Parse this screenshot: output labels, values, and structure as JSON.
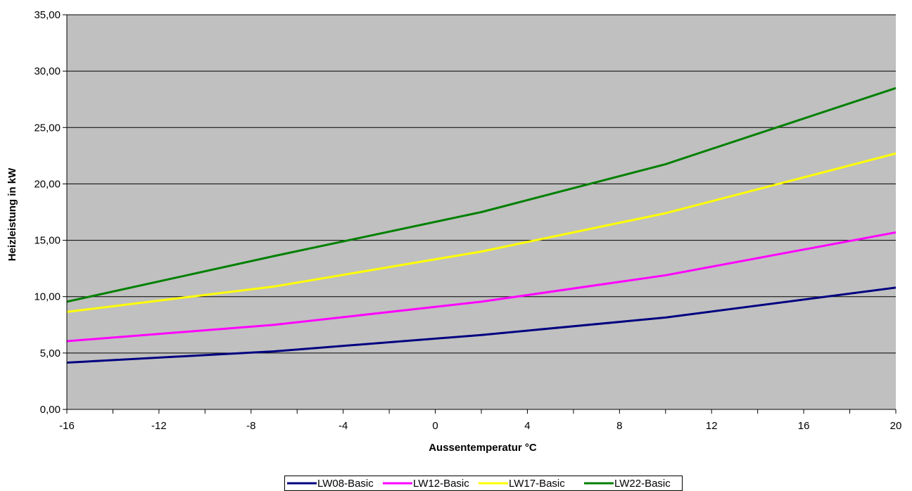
{
  "chart_data": {
    "type": "line",
    "title": "",
    "xlabel": "Aussentemperatur °C",
    "ylabel": "Heizleistung in kW",
    "xlim": [
      -16,
      20
    ],
    "ylim": [
      0,
      35
    ],
    "x_ticks": [
      -16,
      -12,
      -8,
      -4,
      0,
      4,
      8,
      12,
      16,
      20
    ],
    "x_tick_labels": [
      "-16",
      "-12",
      "-8",
      "-4",
      "0",
      "4",
      "8",
      "12",
      "16",
      "20"
    ],
    "y_ticks": [
      0,
      5,
      10,
      15,
      20,
      25,
      30,
      35
    ],
    "y_tick_labels": [
      "0,00",
      "5,00",
      "10,00",
      "15,00",
      "20,00",
      "25,00",
      "30,00",
      "35,00"
    ],
    "grid": "horizontal",
    "plot_background": "#c0c0c0",
    "legend_position": "bottom",
    "x": [
      -16,
      -7,
      2,
      10,
      20
    ],
    "series": [
      {
        "name": "LW08-Basic",
        "color": "#000080",
        "values": [
          4.15,
          5.15,
          6.6,
          8.15,
          10.8
        ]
      },
      {
        "name": "LW12-Basic",
        "color": "#ff00ff",
        "values": [
          6.05,
          7.5,
          9.55,
          11.9,
          15.7
        ]
      },
      {
        "name": "LW17-Basic",
        "color": "#ffff00",
        "values": [
          8.65,
          10.9,
          14.0,
          17.4,
          22.7
        ]
      },
      {
        "name": "LW22-Basic",
        "color": "#008000",
        "values": [
          9.55,
          13.6,
          17.5,
          21.75,
          28.5
        ]
      }
    ]
  }
}
